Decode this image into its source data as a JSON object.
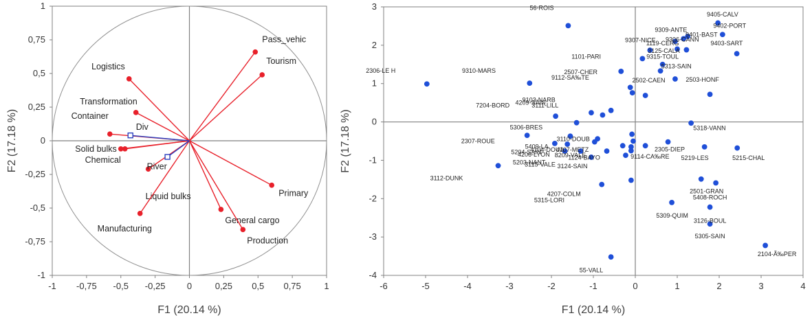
{
  "chart_data": [
    {
      "type": "scatter",
      "title": "",
      "xlabel": "F1 (20.14 %)",
      "ylabel": "F2 (17.18 %)",
      "xlim": [
        -1,
        1
      ],
      "ylim": [
        -1,
        1
      ],
      "xticks": [
        "-1",
        "-0,75",
        "-0,5",
        "-0,25",
        "0",
        "0,25",
        "0,5",
        "0,75",
        "1"
      ],
      "yticks": [
        "-1",
        "-0,75",
        "-0,5",
        "-0,25",
        "0",
        "0,25",
        "0,5",
        "0,75",
        "1"
      ],
      "unit_circle": true,
      "colors": {
        "active": "#e8202a",
        "supplementary": "#2a3fbf",
        "axes": "#808080"
      },
      "active_variables": [
        {
          "name": "Pass_vehic",
          "x": 0.48,
          "y": 0.66
        },
        {
          "name": "Tourism",
          "x": 0.53,
          "y": 0.49
        },
        {
          "name": "Logistics",
          "x": -0.44,
          "y": 0.46
        },
        {
          "name": "Transformation",
          "x": -0.39,
          "y": 0.21
        },
        {
          "name": "Container",
          "x": -0.58,
          "y": 0.05
        },
        {
          "name": "Solid bulks",
          "x": -0.5,
          "y": -0.06
        },
        {
          "name": "Chemical",
          "x": -0.47,
          "y": -0.06
        },
        {
          "name": "Liquid bulks",
          "x": -0.3,
          "y": -0.21
        },
        {
          "name": "Manufacturing",
          "x": -0.36,
          "y": -0.54
        },
        {
          "name": "General cargo",
          "x": 0.23,
          "y": -0.51
        },
        {
          "name": "Production",
          "x": 0.39,
          "y": -0.66
        },
        {
          "name": "Primary",
          "x": 0.6,
          "y": -0.33
        }
      ],
      "supplementary_variables": [
        {
          "name": "Div",
          "x": -0.43,
          "y": 0.04
        },
        {
          "name": "River",
          "x": -0.16,
          "y": -0.12
        }
      ]
    },
    {
      "type": "scatter",
      "title": "",
      "xlabel": "F1 (20.14 %)",
      "ylabel": "F2 (17.18 %)",
      "xlim": [
        -6,
        4
      ],
      "ylim": [
        -4,
        3
      ],
      "xticks": [
        "-6",
        "-5",
        "-4",
        "-3",
        "-2",
        "-1",
        "0",
        "1",
        "2",
        "3",
        "4"
      ],
      "yticks": [
        "-4",
        "-3",
        "-2",
        "-1",
        "0",
        "1",
        "2",
        "3"
      ],
      "colors": {
        "point": "#1f4fd8",
        "axes": "#808080"
      },
      "points": [
        {
          "x": 1.97,
          "y": 2.58
        },
        {
          "x": 2.08,
          "y": 2.28
        },
        {
          "x": 1.25,
          "y": 2.23
        },
        {
          "x": 1.15,
          "y": 2.17
        },
        {
          "x": 0.95,
          "y": 2.1
        },
        {
          "x": 2.42,
          "y": 1.78
        },
        {
          "x": 0.35,
          "y": 1.87
        },
        {
          "x": 1.0,
          "y": 1.9
        },
        {
          "x": 1.22,
          "y": 1.88
        },
        {
          "x": 0.17,
          "y": 1.65
        },
        {
          "x": 0.65,
          "y": 1.5
        },
        {
          "x": 0.6,
          "y": 1.33
        },
        {
          "x": -0.34,
          "y": 1.32
        },
        {
          "x": 0.95,
          "y": 1.12
        },
        {
          "x": -0.12,
          "y": 0.9
        },
        {
          "x": -0.07,
          "y": 0.76
        },
        {
          "x": 0.24,
          "y": 0.69
        },
        {
          "x": 1.78,
          "y": 0.72
        },
        {
          "x": -4.97,
          "y": 0.99
        },
        {
          "x": -1.6,
          "y": 2.51
        },
        {
          "x": -2.52,
          "y": 1.01
        },
        {
          "x": -1.05,
          "y": 0.24
        },
        {
          "x": -0.78,
          "y": 0.18
        },
        {
          "x": -0.58,
          "y": 0.3
        },
        {
          "x": -1.9,
          "y": 0.15
        },
        {
          "x": -1.4,
          "y": -0.02
        },
        {
          "x": 1.33,
          "y": -0.03
        },
        {
          "x": -2.58,
          "y": -0.35
        },
        {
          "x": -1.55,
          "y": -0.37
        },
        {
          "x": -0.08,
          "y": -0.32
        },
        {
          "x": -1.92,
          "y": -0.56
        },
        {
          "x": -1.62,
          "y": -0.58
        },
        {
          "x": -0.9,
          "y": -0.44
        },
        {
          "x": -0.97,
          "y": -0.52
        },
        {
          "x": -0.05,
          "y": -0.5
        },
        {
          "x": 0.78,
          "y": -0.52
        },
        {
          "x": -0.3,
          "y": -0.62
        },
        {
          "x": 0.24,
          "y": -0.62
        },
        {
          "x": -0.1,
          "y": -0.65
        },
        {
          "x": 1.65,
          "y": -0.65
        },
        {
          "x": 2.43,
          "y": -0.68
        },
        {
          "x": -0.1,
          "y": -0.75
        },
        {
          "x": -1.68,
          "y": -0.76
        },
        {
          "x": -1.3,
          "y": -0.76
        },
        {
          "x": -0.68,
          "y": -0.76
        },
        {
          "x": -0.23,
          "y": -0.87
        },
        {
          "x": -1.05,
          "y": -0.92
        },
        {
          "x": -3.27,
          "y": -1.14
        },
        {
          "x": -0.1,
          "y": -1.52
        },
        {
          "x": -0.8,
          "y": -1.63
        },
        {
          "x": 1.57,
          "y": -1.49
        },
        {
          "x": 1.92,
          "y": -1.59
        },
        {
          "x": 0.87,
          "y": -2.1
        },
        {
          "x": 1.78,
          "y": -2.22
        },
        {
          "x": 1.78,
          "y": -2.66
        },
        {
          "x": 3.1,
          "y": -3.22
        },
        {
          "x": -0.58,
          "y": -3.52
        }
      ],
      "labels": [
        {
          "text": "9405-CALV",
          "x": 2.08,
          "y": 2.75
        },
        {
          "text": "9402-PORT",
          "x": 2.25,
          "y": 2.45
        },
        {
          "text": "9309-ANTE",
          "x": 0.85,
          "y": 2.35
        },
        {
          "text": "9306-CANN",
          "x": 1.12,
          "y": 2.1
        },
        {
          "text": "9307-NICE",
          "x": 0.12,
          "y": 2.08
        },
        {
          "text": "9401-BAST",
          "x": 1.58,
          "y": 2.22
        },
        {
          "text": "9403-SART",
          "x": 2.18,
          "y": 2.0
        },
        {
          "text": "1119-CERG",
          "x": 0.65,
          "y": 2.0
        },
        {
          "text": "3125-CALA",
          "x": 0.68,
          "y": 1.8
        },
        {
          "text": "9315-TOUL",
          "x": 0.65,
          "y": 1.65
        },
        {
          "text": "5313-SAIN",
          "x": 0.98,
          "y": 1.4
        },
        {
          "text": "1101-PARI",
          "x": -1.17,
          "y": 1.65
        },
        {
          "text": "2507-CHER",
          "x": -1.3,
          "y": 1.25
        },
        {
          "text": "9112-SA‰TE",
          "x": -1.55,
          "y": 1.1
        },
        {
          "text": "2502-CAEN",
          "x": 0.32,
          "y": 1.03
        },
        {
          "text": "2503-HONF",
          "x": 1.6,
          "y": 1.05
        },
        {
          "text": "56-ROIS",
          "x": -2.23,
          "y": 2.92
        },
        {
          "text": "2306-LE H",
          "x": -6.07,
          "y": 1.28
        },
        {
          "text": "9310-MARS",
          "x": -3.73,
          "y": 1.28
        },
        {
          "text": "9103-NARB",
          "x": -2.3,
          "y": 0.52
        },
        {
          "text": "4209-SAIN",
          "x": -2.5,
          "y": 0.45
        },
        {
          "text": "3111-LILL",
          "x": -2.15,
          "y": 0.38
        },
        {
          "text": "7204-BORD",
          "x": -3.4,
          "y": 0.38
        },
        {
          "text": "5318-VANN",
          "x": 1.77,
          "y": -0.21
        },
        {
          "text": "5306-BRES",
          "x": -2.6,
          "y": -0.2
        },
        {
          "text": "2307-ROUE",
          "x": -3.75,
          "y": -0.55
        },
        {
          "text": "3110-DOUB",
          "x": -1.48,
          "y": -0.5
        },
        {
          "text": "5409-LA",
          "x": -2.35,
          "y": -0.7
        },
        {
          "text": "4104-DOUA",
          "x": -2.1,
          "y": -0.78
        },
        {
          "text": "4107-METZ",
          "x": -1.5,
          "y": -0.78
        },
        {
          "text": "5204-SAIN",
          "x": -2.6,
          "y": -0.84
        },
        {
          "text": "4206-LYON",
          "x": -2.42,
          "y": -0.9
        },
        {
          "text": "8209-VALE",
          "x": -1.55,
          "y": -0.92
        },
        {
          "text": "1124-BAYO",
          "x": -1.22,
          "y": -0.98
        },
        {
          "text": "5203-NANT",
          "x": -2.53,
          "y": -1.11
        },
        {
          "text": "3115-VALE",
          "x": -2.27,
          "y": -1.16
        },
        {
          "text": "3124-SAIN",
          "x": -1.5,
          "y": -1.21
        },
        {
          "text": "2305-DIEP",
          "x": 0.82,
          "y": -0.77
        },
        {
          "text": "9114-CA‰RE",
          "x": 0.35,
          "y": -0.96
        },
        {
          "text": "5219-LES",
          "x": 1.42,
          "y": -0.99
        },
        {
          "text": "5215-CHAL",
          "x": 2.7,
          "y": -0.99
        },
        {
          "text": "3112-DUNK",
          "x": -4.5,
          "y": -1.52
        },
        {
          "text": "4207-COLM",
          "x": -1.7,
          "y": -1.93
        },
        {
          "text": "5315-LORI",
          "x": -2.05,
          "y": -2.09
        },
        {
          "text": "2501-GRAN",
          "x": 1.7,
          "y": -1.86
        },
        {
          "text": "5408-ROCH",
          "x": 1.78,
          "y": -2.02
        },
        {
          "text": "5309-QUIM",
          "x": 0.88,
          "y": -2.5
        },
        {
          "text": "3126-BOUL",
          "x": 1.78,
          "y": -2.63
        },
        {
          "text": "5305-SAIN",
          "x": 1.78,
          "y": -3.03
        },
        {
          "text": "2104-Ã‰PER",
          "x": 3.38,
          "y": -3.5
        },
        {
          "text": "55-VALL",
          "x": -1.05,
          "y": -3.92
        }
      ]
    }
  ]
}
